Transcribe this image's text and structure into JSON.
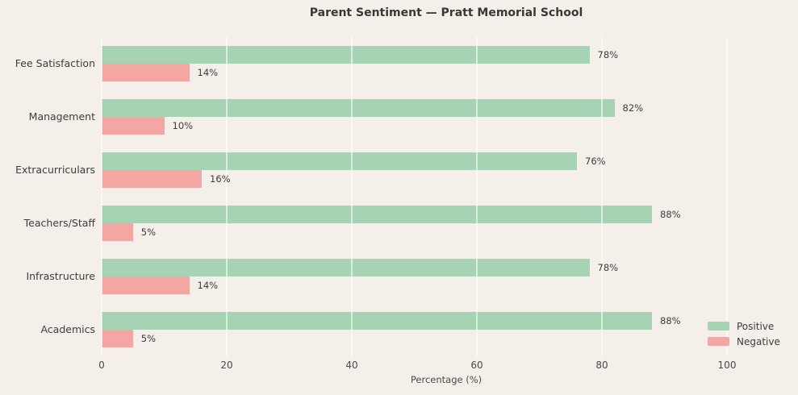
{
  "figure": {
    "background": "#f4efe9",
    "grid_color": "#ffffff"
  },
  "chart_data": {
    "type": "bar",
    "orientation": "horizontal",
    "title": "Parent Sentiment — Pratt Memorial School",
    "xlabel": "Percentage (%)",
    "categories": [
      "Fee Satisfaction",
      "Management",
      "Extracurriculars",
      "Teachers/Staff",
      "Infrastructure",
      "Academics"
    ],
    "series": [
      {
        "name": "Positive",
        "color": "#a6d3b4",
        "values": [
          78,
          82,
          76,
          88,
          78,
          88
        ]
      },
      {
        "name": "Negative",
        "color": "#f4a7a2",
        "values": [
          14,
          10,
          16,
          5,
          14,
          5
        ]
      }
    ],
    "value_suffix": "%",
    "xticks": [
      0,
      20,
      40,
      60,
      80,
      100
    ],
    "xlim": [
      0,
      110
    ],
    "grid": true,
    "legend_position": "lower right"
  }
}
